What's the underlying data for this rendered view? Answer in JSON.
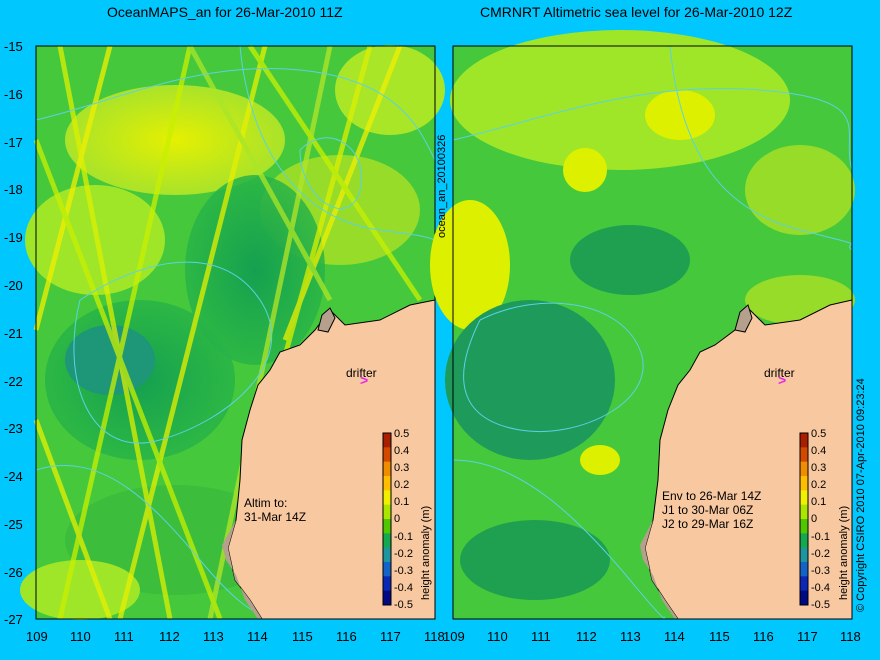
{
  "left_map": {
    "title": "OceanMAPS_an for 26-Mar-2010 11Z",
    "side_label": "ocean_an_20100326",
    "annotation_line1": "Altim to:",
    "annotation_line2": "31-Mar 14Z",
    "drifter_label": "drifter",
    "colorbar_label": "height anomaly (m)"
  },
  "right_map": {
    "title": "CMRNRT Altimetric sea level  for 26-Mar-2010 12Z",
    "annotation_lines": [
      "Env to 26-Mar 14Z",
      "J1 to 30-Mar 06Z",
      "J2 to 29-Mar 16Z"
    ],
    "drifter_label": "drifter",
    "colorbar_label": "height anomaly (m)"
  },
  "copyright": "© Copyright CSIRO 2010  07-Apr-2010 09:23:24",
  "axes": {
    "lat_ticks": [
      "-15",
      "-16",
      "-17",
      "-18",
      "-19",
      "-20",
      "-21",
      "-22",
      "-23",
      "-24",
      "-25",
      "-26",
      "-27"
    ],
    "lon_ticks": [
      "109",
      "110",
      "111",
      "112",
      "113",
      "114",
      "115",
      "116",
      "117",
      "118"
    ]
  },
  "colorbar": {
    "ticks": [
      "0.5",
      "0.4",
      "0.3",
      "0.2",
      "0.1",
      "0",
      "-0.1",
      "-0.2",
      "-0.3",
      "-0.4",
      "-0.5"
    ],
    "colors": [
      "#aa1e00",
      "#d24a00",
      "#f08c00",
      "#ffbe00",
      "#f0f000",
      "#aae600",
      "#50c800",
      "#14a850",
      "#1e96a0",
      "#1464c8",
      "#0a28b4",
      "#000a82"
    ]
  },
  "colors": {
    "background": "#00c8ff",
    "land": "#f8c8a0",
    "coast_shelf": "#b4a08c",
    "contour": "#5ad2e6",
    "drifter": "#e628e6"
  }
}
